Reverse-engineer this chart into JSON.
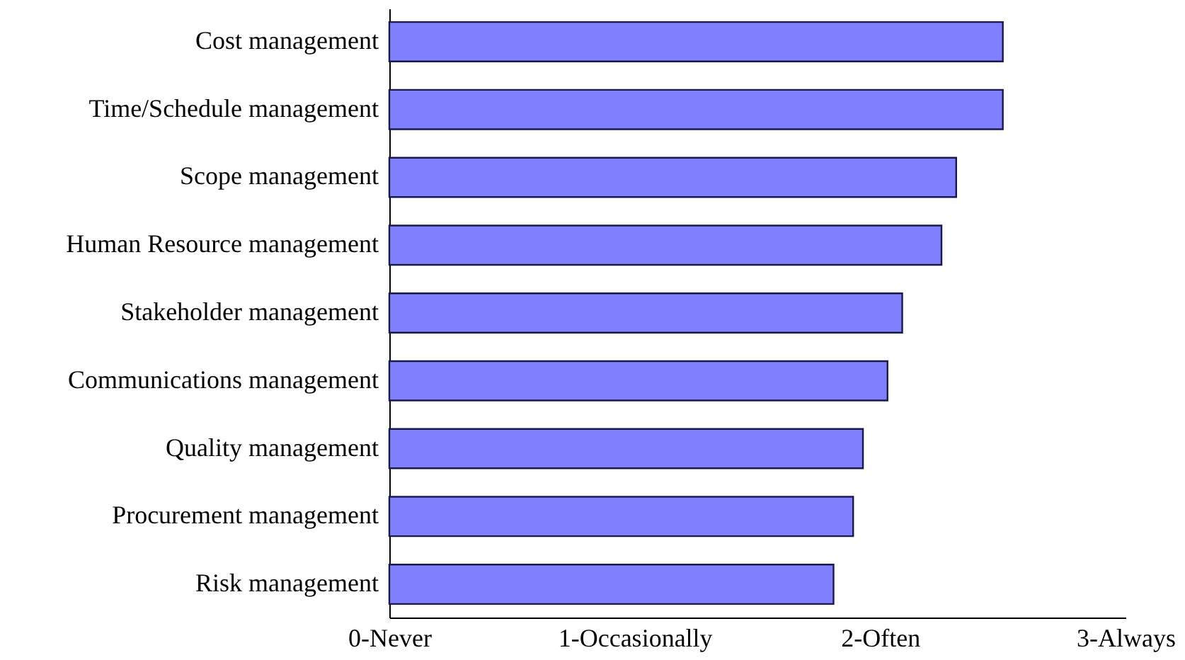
{
  "chart_data": {
    "type": "bar",
    "orientation": "horizontal",
    "categories": [
      "Cost management",
      "Time/Schedule management",
      "Scope management",
      "Human Resource management",
      "Stakeholder management",
      "Communications management",
      "Quality management",
      "Procurement management",
      "Risk management"
    ],
    "values": [
      2.5,
      2.5,
      2.31,
      2.25,
      2.09,
      2.03,
      1.93,
      1.89,
      1.81
    ],
    "color": "#8080ff",
    "xlim": [
      0,
      3
    ],
    "xticks": [
      {
        "value": 0,
        "label": "0-Never"
      },
      {
        "value": 1,
        "label": "1-Occasionally"
      },
      {
        "value": 2,
        "label": "2-Often"
      },
      {
        "value": 3,
        "label": "3-Always"
      }
    ],
    "grid": false
  }
}
